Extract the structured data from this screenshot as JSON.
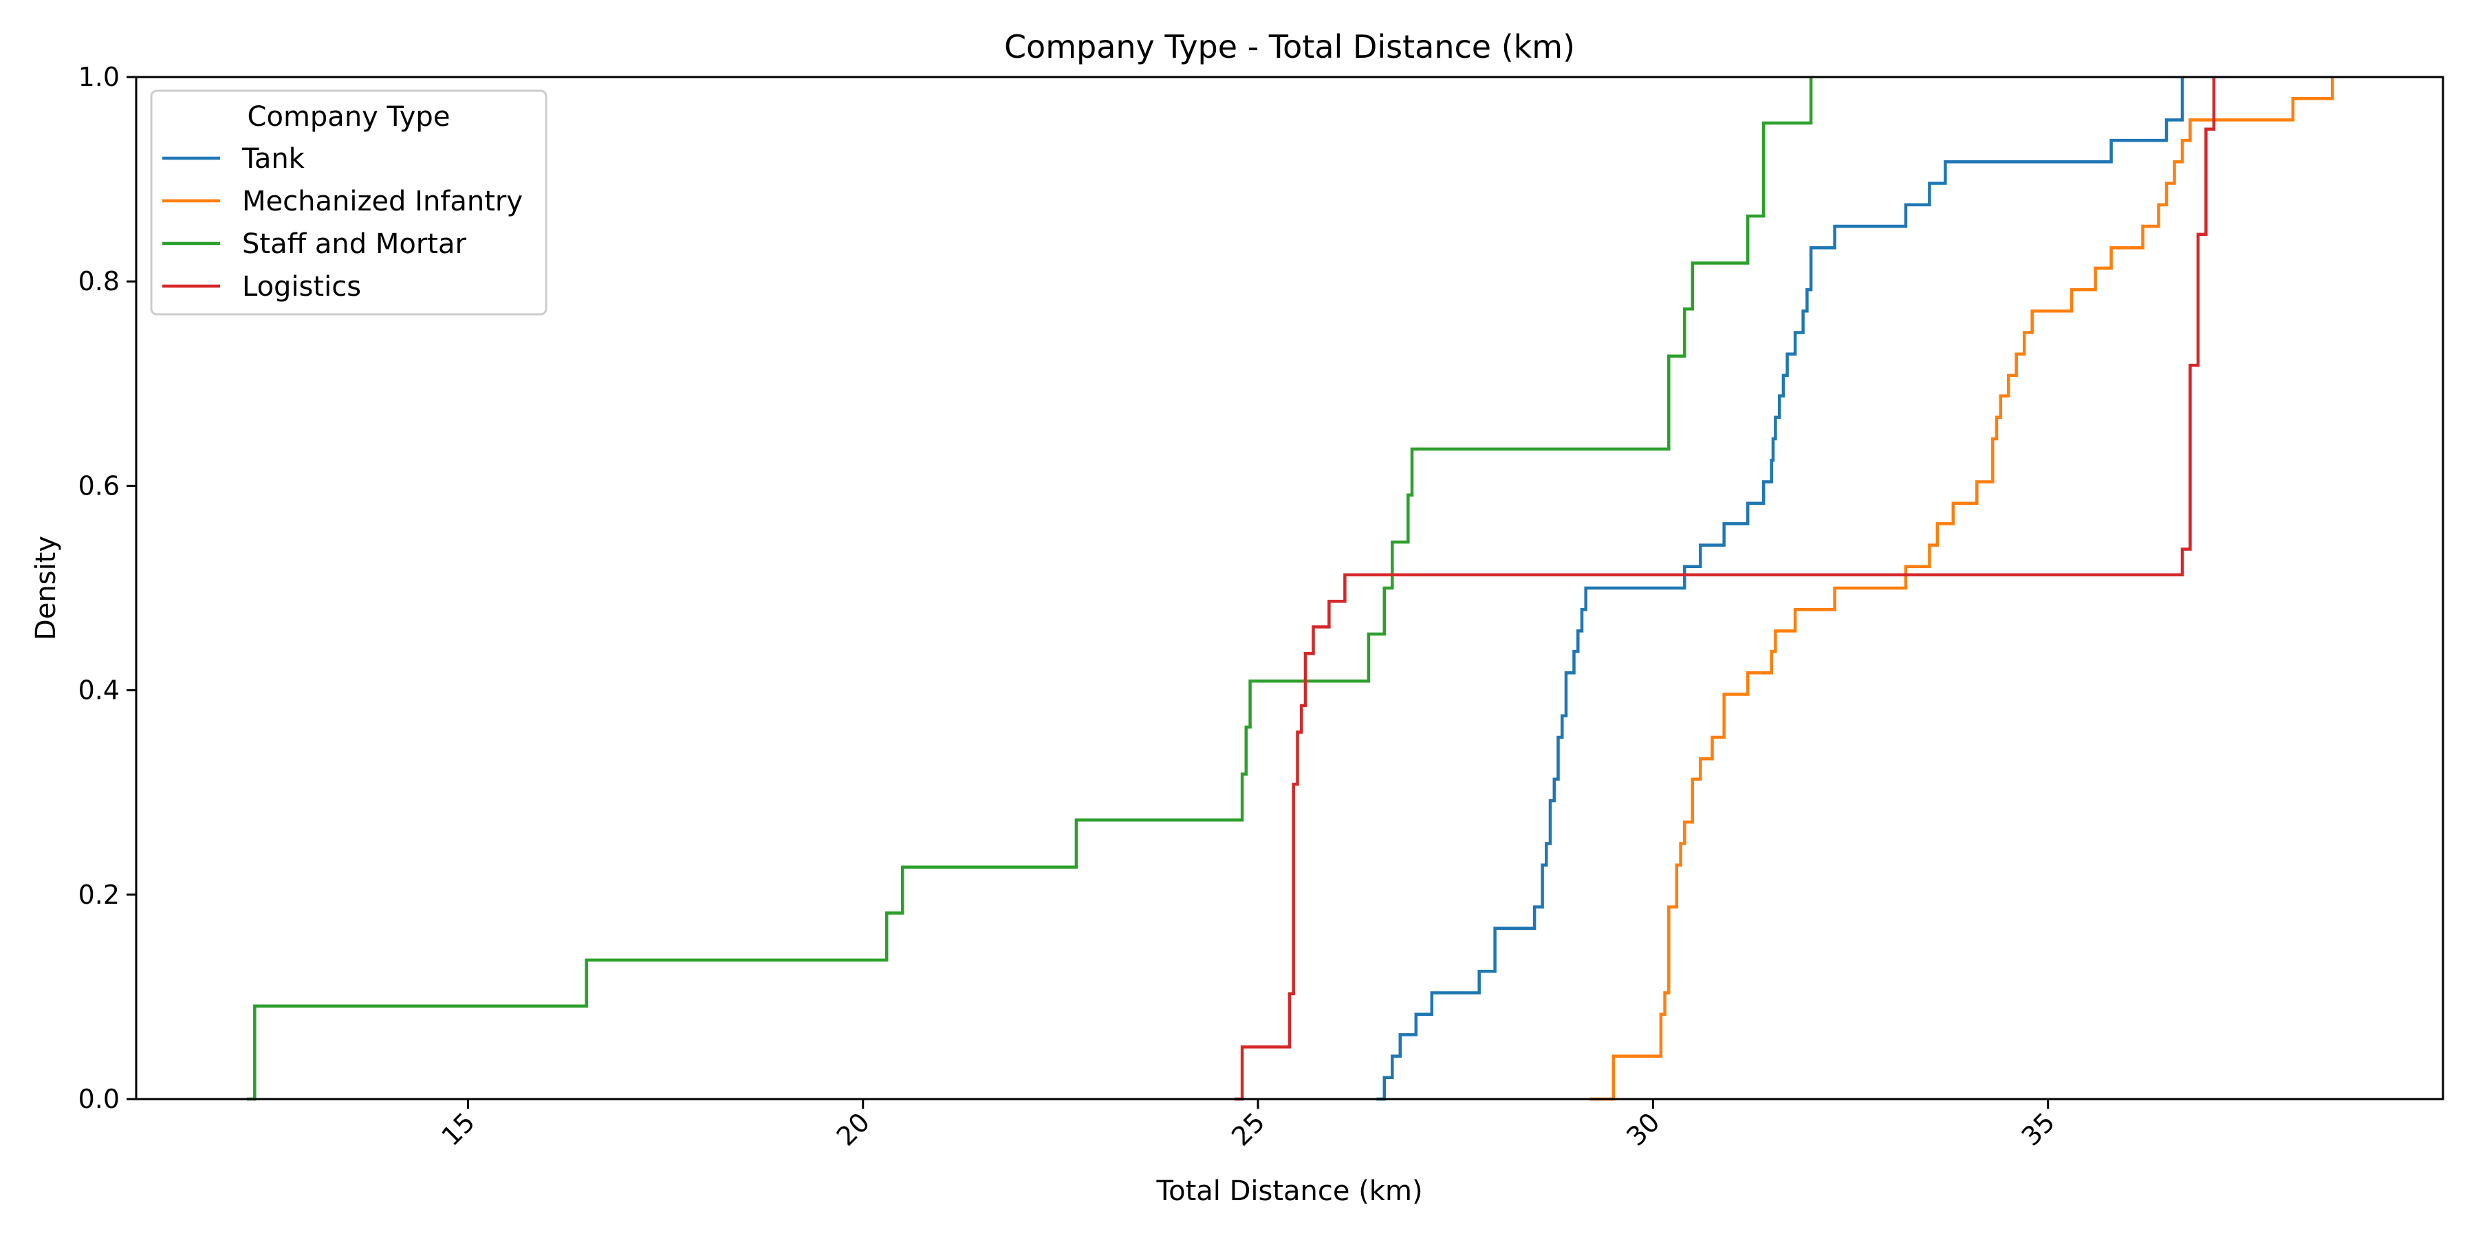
{
  "chart_data": {
    "type": "line",
    "step": true,
    "title": "Company Type - Total Distance (km)",
    "xlabel": "Total Distance (km)",
    "ylabel": "Density",
    "xlim": [
      10.8,
      40.0
    ],
    "ylim": [
      0.0,
      1.0
    ],
    "xticks": [
      15,
      20,
      25,
      30,
      35
    ],
    "xtick_labels": [
      "15",
      "20",
      "25",
      "30",
      "35"
    ],
    "xtick_rotation": 45,
    "yticks": [
      0.0,
      0.2,
      0.4,
      0.6,
      0.8,
      1.0
    ],
    "ytick_labels": [
      "0.0",
      "0.2",
      "0.4",
      "0.6",
      "0.8",
      "1.0"
    ],
    "grid": false,
    "legend": {
      "title": "Company Type",
      "placement": "top-left"
    },
    "series": [
      {
        "name": "Tank",
        "color": "#1f77b4",
        "x": [
          26.5,
          26.6,
          26.7,
          26.8,
          27.0,
          27.2,
          27.8,
          28.0,
          28.5,
          28.6,
          28.65,
          28.7,
          28.75,
          28.8,
          28.85,
          28.9,
          29.0,
          29.05,
          29.1,
          29.15,
          30.4,
          30.6,
          30.9,
          31.2,
          31.4,
          31.5,
          31.52,
          31.55,
          31.6,
          31.65,
          31.7,
          31.8,
          31.9,
          31.95,
          32.0,
          32.3,
          33.2,
          33.5,
          33.7,
          35.8,
          36.5,
          36.7
        ],
        "y": [
          0.0,
          0.021,
          0.042,
          0.063,
          0.083,
          0.104,
          0.125,
          0.167,
          0.188,
          0.229,
          0.25,
          0.292,
          0.313,
          0.354,
          0.375,
          0.417,
          0.438,
          0.458,
          0.479,
          0.5,
          0.521,
          0.542,
          0.563,
          0.583,
          0.604,
          0.625,
          0.646,
          0.667,
          0.688,
          0.708,
          0.729,
          0.75,
          0.771,
          0.792,
          0.833,
          0.854,
          0.875,
          0.896,
          0.917,
          0.938,
          0.958,
          1.0
        ]
      },
      {
        "name": "Mechanized Infantry",
        "color": "#ff7f0e",
        "x": [
          29.2,
          29.5,
          30.1,
          30.15,
          30.2,
          30.3,
          30.35,
          30.4,
          30.5,
          30.6,
          30.75,
          30.9,
          31.2,
          31.5,
          31.55,
          31.6,
          31.8,
          32.3,
          33.2,
          33.5,
          33.6,
          33.8,
          34.1,
          34.3,
          34.35,
          34.4,
          34.5,
          34.6,
          34.7,
          34.8,
          35.3,
          35.6,
          35.8,
          36.2,
          36.4,
          36.5,
          36.6,
          36.7,
          36.8,
          37.0,
          38.1,
          38.6
        ],
        "y": [
          0.0,
          0.042,
          0.083,
          0.104,
          0.188,
          0.229,
          0.25,
          0.271,
          0.313,
          0.333,
          0.354,
          0.396,
          0.417,
          0.438,
          0.458,
          0.458,
          0.479,
          0.5,
          0.521,
          0.542,
          0.563,
          0.583,
          0.604,
          0.646,
          0.667,
          0.688,
          0.708,
          0.729,
          0.75,
          0.771,
          0.792,
          0.813,
          0.833,
          0.854,
          0.875,
          0.896,
          0.917,
          0.938,
          0.958,
          0.958,
          0.979,
          1.0
        ]
      },
      {
        "name": "Staff and Mortar",
        "color": "#2ca02c",
        "x": [
          12.2,
          12.3,
          16.5,
          20.3,
          20.5,
          22.7,
          24.8,
          24.85,
          24.9,
          26.4,
          26.6,
          26.7,
          26.9,
          26.95,
          30.2,
          30.4,
          30.5,
          31.2,
          31.4,
          32.0
        ],
        "y": [
          0.0,
          0.091,
          0.136,
          0.182,
          0.227,
          0.273,
          0.318,
          0.364,
          0.409,
          0.455,
          0.5,
          0.545,
          0.591,
          0.636,
          0.727,
          0.773,
          0.818,
          0.864,
          0.955,
          1.0
        ]
      },
      {
        "name": "Logistics",
        "color": "#d62728",
        "x": [
          24.7,
          24.8,
          25.4,
          25.45,
          25.5,
          25.55,
          25.6,
          25.7,
          25.9,
          26.1,
          36.7,
          36.8,
          36.9,
          37.0,
          37.1
        ],
        "y": [
          0.0,
          0.051,
          0.103,
          0.308,
          0.359,
          0.385,
          0.436,
          0.462,
          0.487,
          0.513,
          0.538,
          0.718,
          0.846,
          0.949,
          1.0
        ]
      }
    ]
  }
}
